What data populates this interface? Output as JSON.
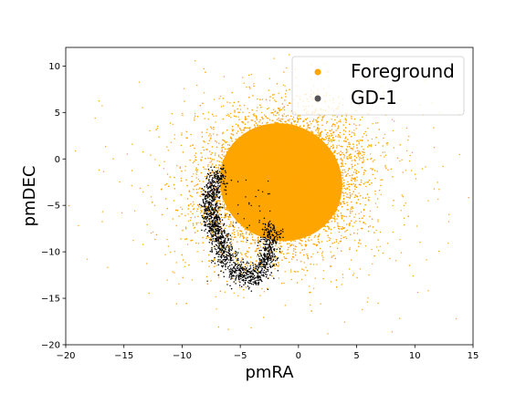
{
  "chart_data": {
    "type": "scatter",
    "xlabel": "pmRA",
    "ylabel": "pmDEC",
    "xlim": [
      -20,
      15
    ],
    "ylim": [
      -20,
      12
    ],
    "xticks": [
      -20,
      -15,
      -10,
      -5,
      0,
      5,
      10,
      15
    ],
    "yticks": [
      -20,
      -15,
      -10,
      -5,
      0,
      5,
      10
    ],
    "legend_position": "upper-right",
    "series": [
      {
        "name": "Foreground",
        "color": "#ffa500",
        "cloud": {
          "center": [
            -1.5,
            -2.5
          ],
          "sigma": [
            2.8,
            3.3
          ],
          "rotation_deg": -25
        },
        "extent": {
          "x": [
            -12,
            8
          ],
          "y": [
            -17,
            8
          ]
        }
      },
      {
        "name": "GD-1",
        "color": "#000000",
        "track": [
          [
            -6.9,
            -1.4
          ],
          [
            -7.1,
            -2.5
          ],
          [
            -7.4,
            -3.5
          ],
          [
            -7.6,
            -4.5
          ],
          [
            -7.6,
            -5.5
          ],
          [
            -7.4,
            -6.5
          ],
          [
            -7.2,
            -7.5
          ],
          [
            -6.9,
            -8.5
          ],
          [
            -6.6,
            -9.5
          ],
          [
            -6.2,
            -10.5
          ],
          [
            -5.7,
            -11.5
          ],
          [
            -5.1,
            -12.3
          ],
          [
            -4.4,
            -12.9
          ],
          [
            -3.6,
            -12.7
          ],
          [
            -3.0,
            -11.7
          ],
          [
            -2.7,
            -10.7
          ],
          [
            -2.6,
            -9.6
          ],
          [
            -2.4,
            -8.5
          ],
          [
            -2.3,
            -7.2
          ]
        ]
      }
    ]
  }
}
